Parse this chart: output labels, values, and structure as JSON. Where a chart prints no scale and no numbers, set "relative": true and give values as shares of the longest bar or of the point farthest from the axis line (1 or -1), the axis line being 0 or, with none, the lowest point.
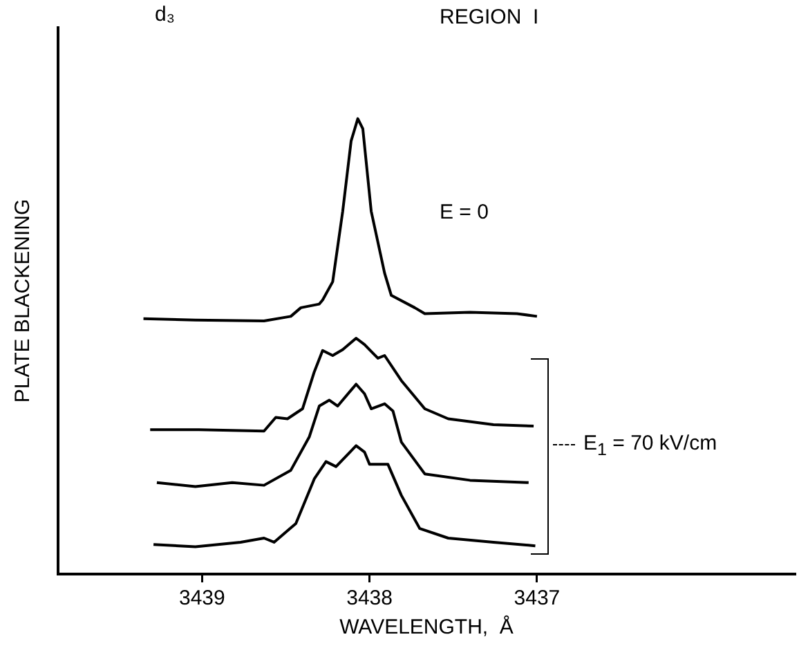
{
  "chart_data": {
    "type": "line",
    "title": "d₃",
    "subtitle": "REGION  I",
    "xlabel": "WAVELENGTH,  Å",
    "ylabel": "PLATE BLACKENING",
    "annotations": [
      "E = 0",
      "E$_{1}$ = 70 kV/cm"
    ],
    "relative": true,
    "xlim": [
      3439.86,
      3435.46
    ],
    "xticks": [
      3439,
      3438,
      3437
    ],
    "grid": false,
    "legend": false,
    "marker": "none",
    "line_style": "solid",
    "series": [
      {
        "color": "#000000",
        "x": [
          3439.35,
          3439.04,
          3438.63,
          3438.47,
          3438.41,
          3438.3,
          3438.28,
          3438.22,
          3438.16,
          3438.11,
          3438.07,
          3438.04,
          3437.99,
          3437.91,
          3437.87,
          3437.73,
          3437.67,
          3437.4,
          3437.12,
          3437.0
        ],
        "values": [
          0.561,
          0.558,
          0.556,
          0.566,
          0.585,
          0.593,
          0.602,
          0.642,
          0.797,
          0.951,
          1,
          0.978,
          0.797,
          0.661,
          0.612,
          0.585,
          0.572,
          0.575,
          0.572,
          0.566
        ]
      },
      {
        "color": "#000000",
        "x": [
          3439.31,
          3439.02,
          3438.63,
          3438.56,
          3438.49,
          3438.4,
          3438.33,
          3438.28,
          3438.22,
          3438.16,
          3438.08,
          3438.03,
          3437.95,
          3437.91,
          3437.81,
          3437.67,
          3437.53,
          3437.26,
          3437.02
        ],
        "values": [
          0.317,
          0.317,
          0.314,
          0.344,
          0.341,
          0.363,
          0.444,
          0.491,
          0.48,
          0.493,
          0.518,
          0.504,
          0.474,
          0.48,
          0.425,
          0.363,
          0.341,
          0.328,
          0.325
        ]
      },
      {
        "color": "#000000",
        "x": [
          3439.27,
          3439.04,
          3438.82,
          3438.63,
          3438.47,
          3438.36,
          3438.3,
          3438.24,
          3438.19,
          3438.08,
          3438.03,
          3437.99,
          3437.91,
          3437.86,
          3437.81,
          3437.67,
          3437.4,
          3437.05
        ],
        "values": [
          0.201,
          0.192,
          0.201,
          0.195,
          0.228,
          0.301,
          0.369,
          0.382,
          0.369,
          0.417,
          0.396,
          0.363,
          0.374,
          0.358,
          0.29,
          0.22,
          0.206,
          0.201
        ]
      },
      {
        "color": "#000000",
        "x": [
          3439.29,
          3439.04,
          3438.77,
          3438.63,
          3438.57,
          3438.44,
          3438.33,
          3438.26,
          3438.2,
          3438.08,
          3438.03,
          3438.0,
          3437.89,
          3437.81,
          3437.7,
          3437.53,
          3437.26,
          3437.01
        ],
        "values": [
          0.065,
          0.06,
          0.07,
          0.079,
          0.07,
          0.111,
          0.209,
          0.247,
          0.236,
          0.282,
          0.268,
          0.241,
          0.241,
          0.173,
          0.1,
          0.079,
          0.07,
          0.062
        ]
      }
    ]
  }
}
